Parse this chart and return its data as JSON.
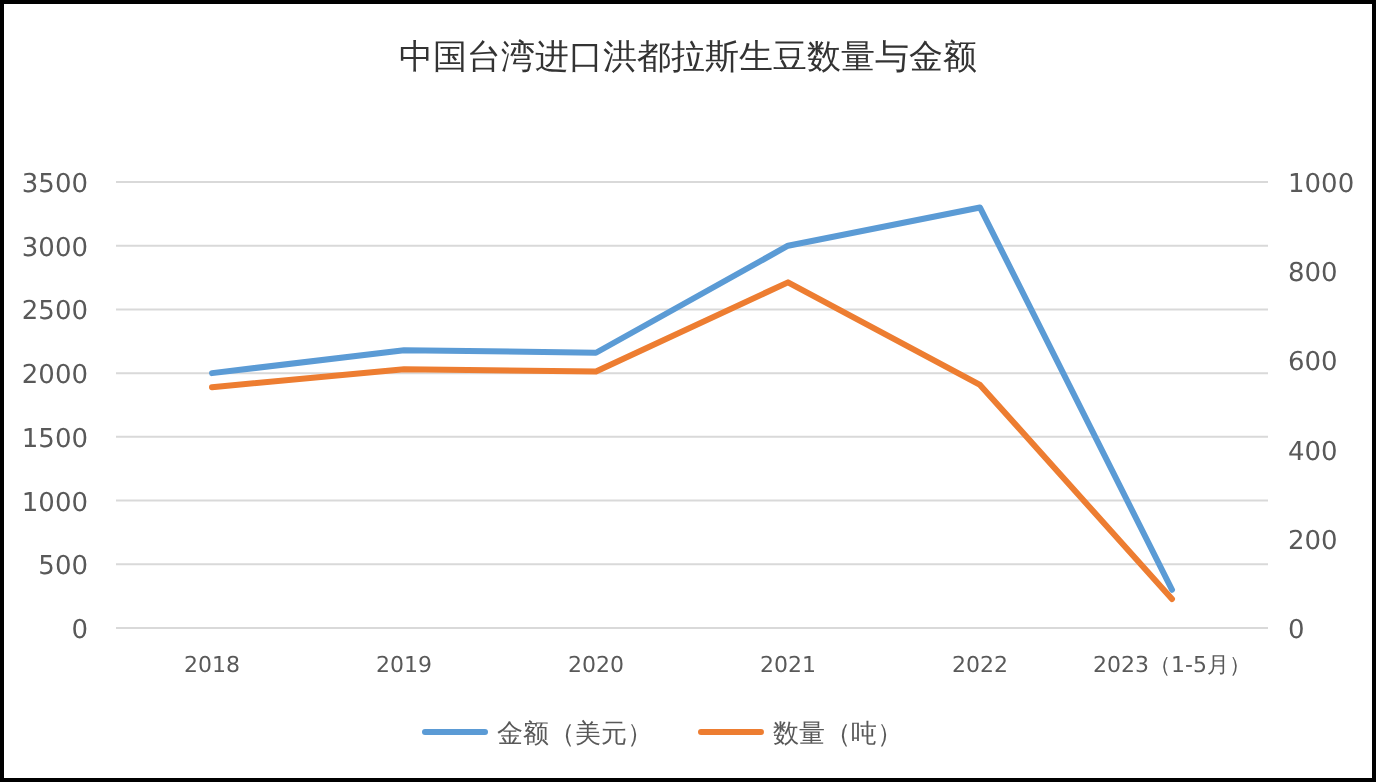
{
  "chart_data": {
    "type": "line",
    "title": "中国台湾进口洪都拉斯生豆数量与金额",
    "categories": [
      "2018",
      "2019",
      "2020",
      "2021",
      "2022",
      "2023（1-5月）"
    ],
    "series": [
      {
        "name": "金额（美元）",
        "color": "#5b9bd5",
        "values": [
          2000,
          2180,
          2160,
          3000,
          3300,
          300
        ]
      },
      {
        "name": "数量（吨）",
        "color": "#ed7d31",
        "values": [
          540,
          580,
          575,
          775,
          545,
          65
        ],
        "axis": "y2"
      }
    ],
    "ylim": [
      0,
      3500
    ],
    "yticks": [
      0,
      500,
      1000,
      1500,
      2000,
      2500,
      3000,
      3500
    ],
    "y2lim": [
      0,
      1000
    ],
    "y2ticks": [
      0,
      200,
      400,
      600,
      800,
      1000
    ],
    "grid": "y",
    "legend": "bottom",
    "marker": "none",
    "line_style": "solid"
  }
}
